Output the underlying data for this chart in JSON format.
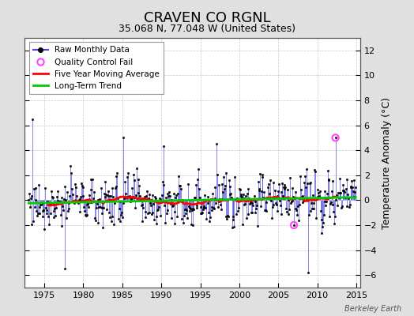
{
  "title": "CRAVEN CO RGNL",
  "subtitle": "35.068 N, 77.048 W (United States)",
  "ylabel_right": "Temperature Anomaly (°C)",
  "ylim": [
    -7,
    13
  ],
  "yticks": [
    -6,
    -4,
    -2,
    0,
    2,
    4,
    6,
    8,
    10,
    12
  ],
  "xlim": [
    1972.5,
    2015.5
  ],
  "xticks": [
    1975,
    1980,
    1985,
    1990,
    1995,
    2000,
    2005,
    2010,
    2015
  ],
  "bg_color": "#e0e0e0",
  "plot_bg_color": "#ffffff",
  "grid_color": "#bbbbbb",
  "raw_line_color": "#4444dd",
  "raw_marker_color": "#000000",
  "ma_color": "#ff0000",
  "trend_color": "#00cc00",
  "qc_fail_color": "#ff44ff",
  "watermark": "Berkeley Earth",
  "raw_lw": 0.8,
  "ma_lw": 2.0,
  "trend_lw": 2.0,
  "title_fontsize": 13,
  "subtitle_fontsize": 9,
  "tick_fontsize": 8,
  "ylabel_fontsize": 9
}
